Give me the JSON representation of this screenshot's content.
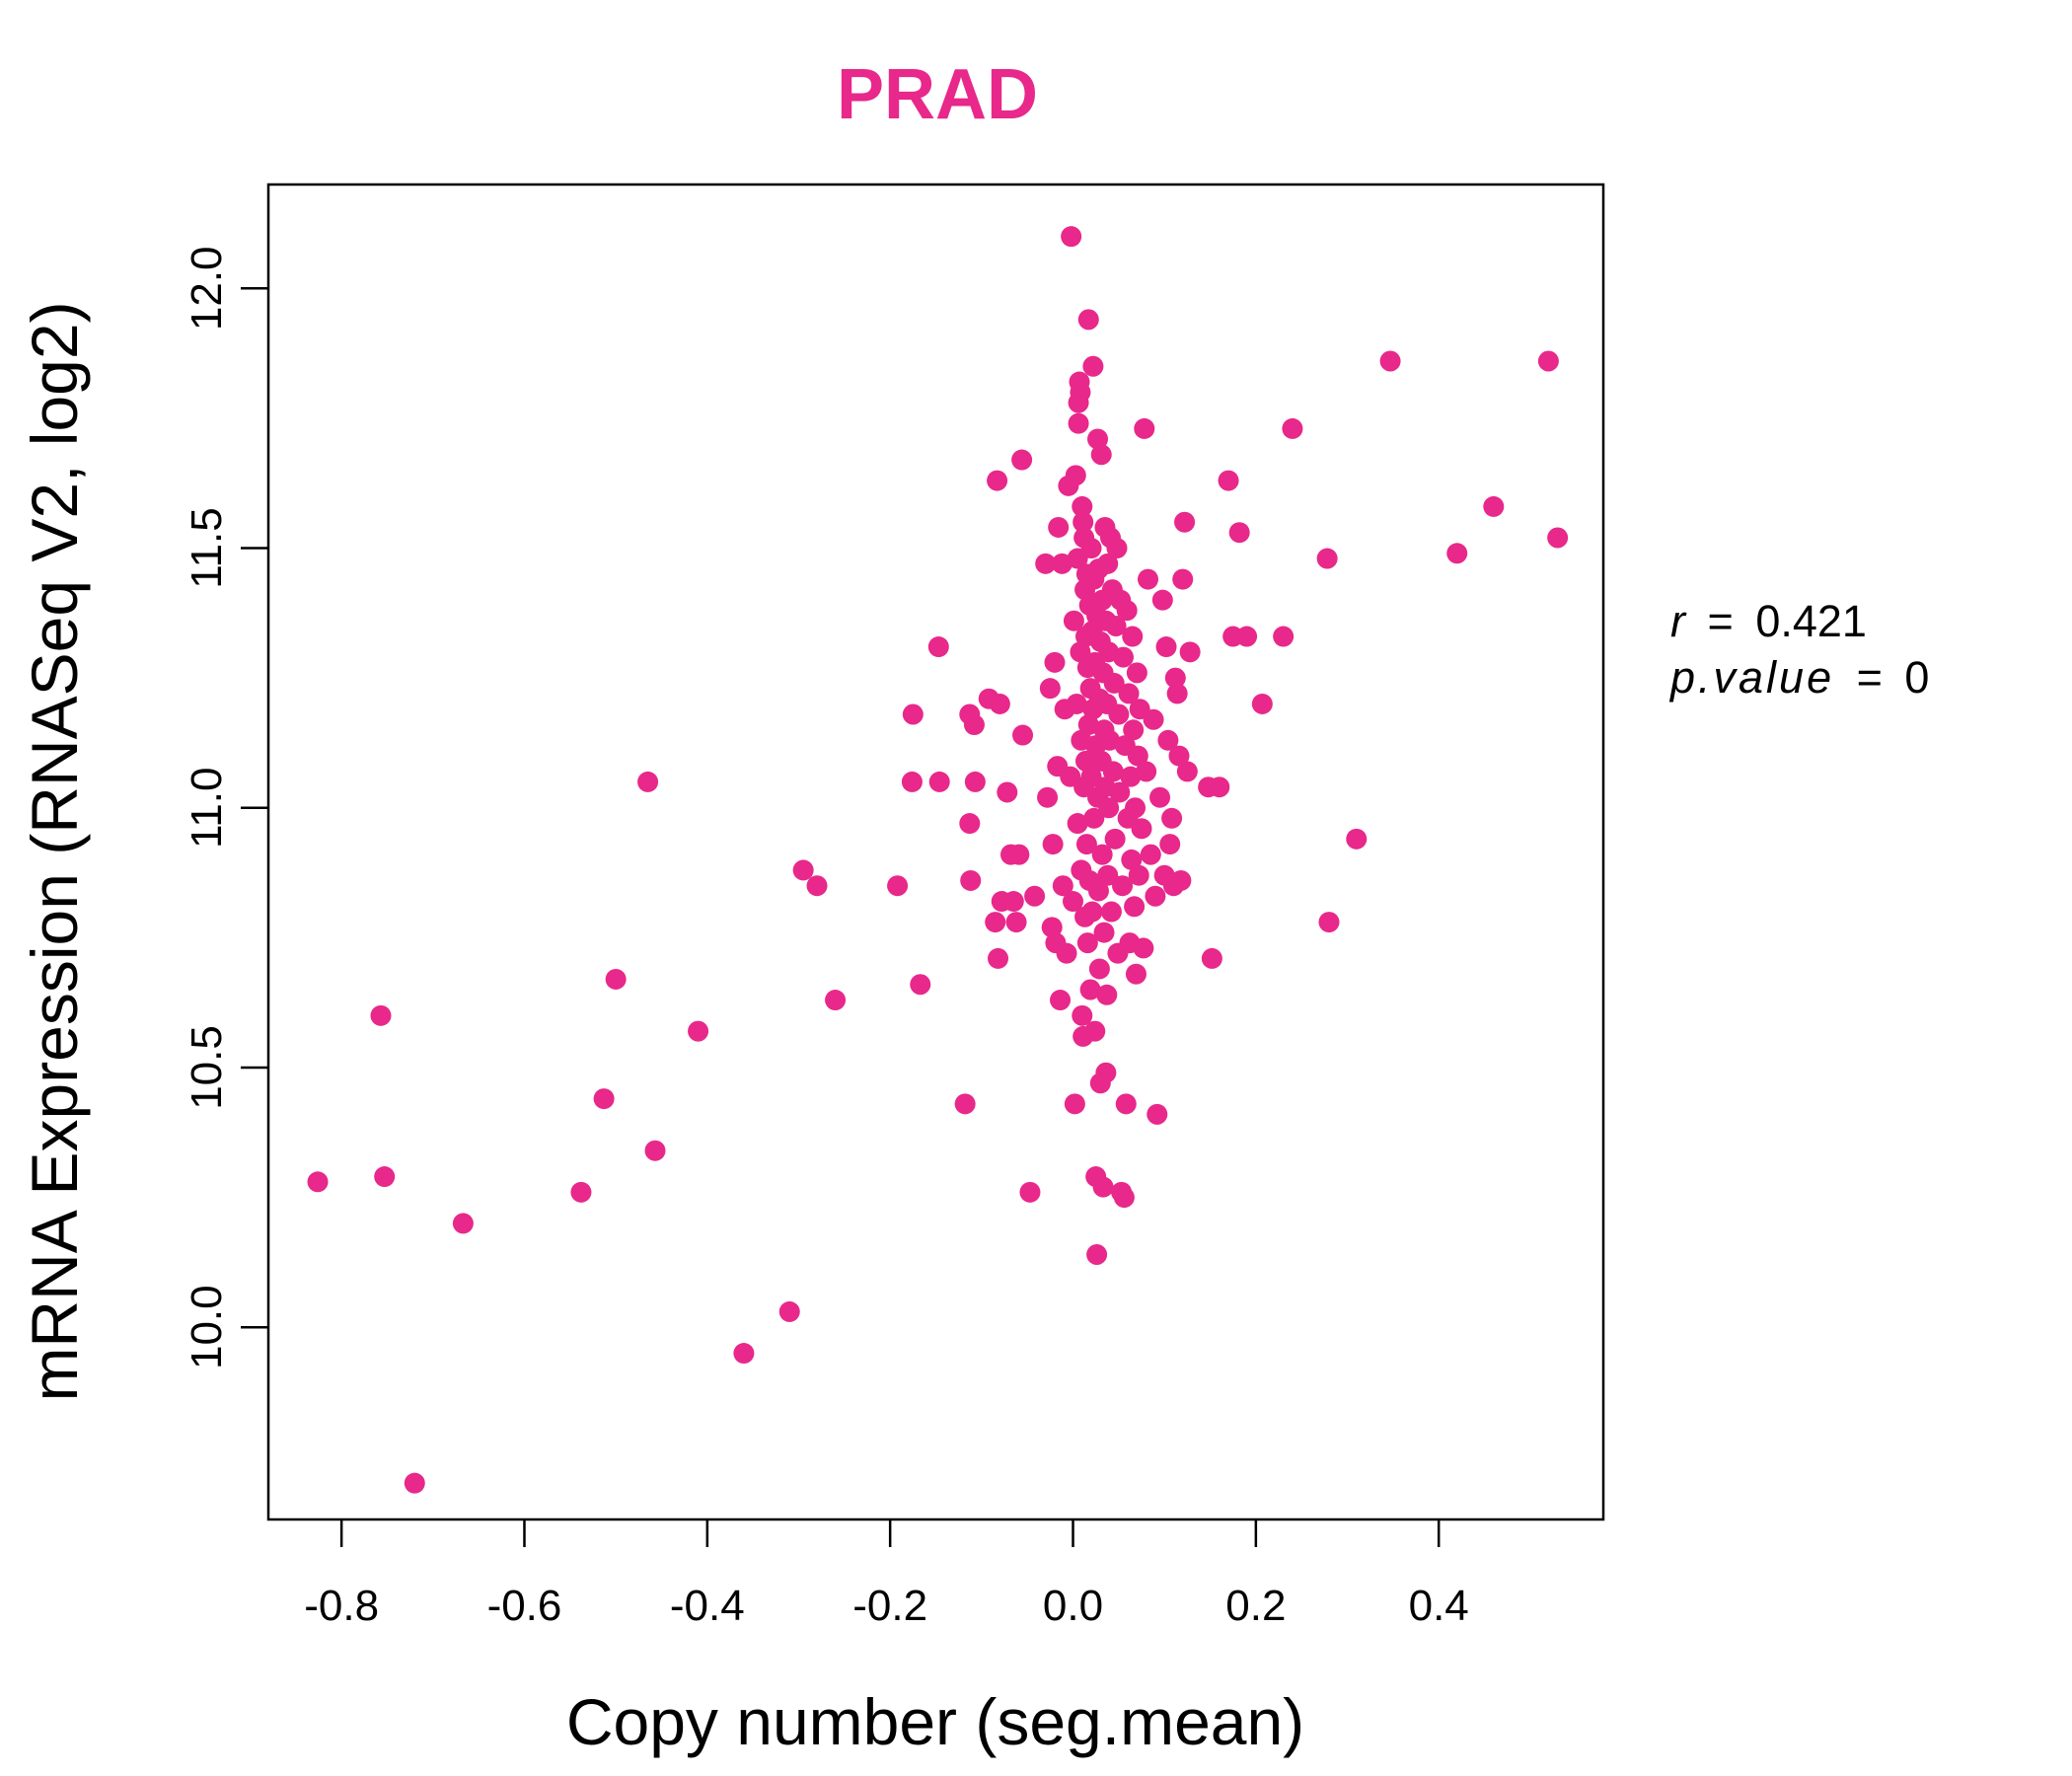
{
  "chart_data": {
    "type": "scatter",
    "title": "PRAD",
    "xlabel": "Copy number (seg.mean)",
    "ylabel": "mRNA Expression (RNASeq V2, log2)",
    "xlim": [
      -0.88,
      0.58
    ],
    "ylim": [
      9.63,
      12.2
    ],
    "xticks": [
      -0.8,
      -0.6,
      -0.4,
      -0.2,
      0.0,
      0.2,
      0.4
    ],
    "xtick_labels": [
      "-0.8",
      "-0.6",
      "-0.4",
      "-0.2",
      "0.0",
      "0.2",
      "0.4"
    ],
    "yticks": [
      10.0,
      10.5,
      11.0,
      11.5,
      12.0
    ],
    "ytick_labels": [
      "10.0",
      "10.5",
      "11.0",
      "11.5",
      "12.0"
    ],
    "grid": false,
    "point_color": "#E8288A",
    "title_color": "#E8288A",
    "annotations": {
      "r_label": "r",
      "r_value": "0.421",
      "p_label": "p.value",
      "p_value": "0"
    },
    "points": [
      [
        -0.826,
        10.28
      ],
      [
        -0.757,
        10.6
      ],
      [
        -0.753,
        10.29
      ],
      [
        -0.72,
        9.7
      ],
      [
        -0.667,
        10.2
      ],
      [
        -0.538,
        10.26
      ],
      [
        -0.513,
        10.44
      ],
      [
        -0.5,
        10.67
      ],
      [
        -0.465,
        11.05
      ],
      [
        -0.457,
        10.34
      ],
      [
        -0.41,
        10.57
      ],
      [
        -0.36,
        9.95
      ],
      [
        -0.31,
        10.03
      ],
      [
        -0.295,
        10.88
      ],
      [
        -0.28,
        10.85
      ],
      [
        -0.26,
        10.63
      ],
      [
        -0.192,
        10.85
      ],
      [
        -0.175,
        11.18
      ],
      [
        -0.176,
        11.05
      ],
      [
        -0.167,
        10.66
      ],
      [
        -0.147,
        11.31
      ],
      [
        -0.146,
        11.05
      ],
      [
        -0.118,
        10.43
      ],
      [
        -0.113,
        11.18
      ],
      [
        -0.113,
        10.97
      ],
      [
        -0.112,
        10.86
      ],
      [
        -0.108,
        11.16
      ],
      [
        -0.107,
        11.05
      ],
      [
        -0.092,
        11.21
      ],
      [
        -0.085,
        10.78
      ],
      [
        -0.083,
        11.63
      ],
      [
        -0.082,
        10.71
      ],
      [
        -0.08,
        11.2
      ],
      [
        -0.078,
        10.82
      ],
      [
        -0.072,
        11.03
      ],
      [
        -0.068,
        10.91
      ],
      [
        -0.065,
        10.82
      ],
      [
        -0.062,
        10.78
      ],
      [
        -0.059,
        10.91
      ],
      [
        -0.056,
        11.67
      ],
      [
        -0.055,
        11.14
      ],
      [
        -0.047,
        10.26
      ],
      [
        -0.042,
        10.83
      ],
      [
        -0.03,
        11.47
      ],
      [
        -0.028,
        11.02
      ],
      [
        -0.025,
        11.23
      ],
      [
        -0.023,
        10.77
      ],
      [
        -0.022,
        10.93
      ],
      [
        -0.02,
        11.28
      ],
      [
        -0.019,
        10.74
      ],
      [
        -0.017,
        11.08
      ],
      [
        -0.016,
        11.54
      ],
      [
        -0.014,
        10.63
      ],
      [
        -0.012,
        11.47
      ],
      [
        -0.011,
        10.85
      ],
      [
        -0.009,
        11.19
      ],
      [
        -0.007,
        10.72
      ],
      [
        -0.005,
        11.62
      ],
      [
        -0.003,
        11.06
      ],
      [
        -0.002,
        12.1
      ],
      [
        0.0,
        10.82
      ],
      [
        0.001,
        11.36
      ],
      [
        0.002,
        10.43
      ],
      [
        0.003,
        11.64
      ],
      [
        0.004,
        11.2
      ],
      [
        0.005,
        11.48
      ],
      [
        0.005,
        10.97
      ],
      [
        0.006,
        11.78
      ],
      [
        0.006,
        11.74
      ],
      [
        0.007,
        11.82
      ],
      [
        0.008,
        11.8
      ],
      [
        0.008,
        11.3
      ],
      [
        0.009,
        11.13
      ],
      [
        0.009,
        10.88
      ],
      [
        0.01,
        11.58
      ],
      [
        0.01,
        10.6
      ],
      [
        0.011,
        11.55
      ],
      [
        0.011,
        10.56
      ],
      [
        0.012,
        11.52
      ],
      [
        0.012,
        11.04
      ],
      [
        0.013,
        11.42
      ],
      [
        0.013,
        10.79
      ],
      [
        0.014,
        11.33
      ],
      [
        0.014,
        11.09
      ],
      [
        0.015,
        11.45
      ],
      [
        0.015,
        10.93
      ],
      [
        0.016,
        11.27
      ],
      [
        0.016,
        10.74
      ],
      [
        0.017,
        11.94
      ],
      [
        0.017,
        11.16
      ],
      [
        0.018,
        11.39
      ],
      [
        0.018,
        10.86
      ],
      [
        0.019,
        11.23
      ],
      [
        0.019,
        10.65
      ],
      [
        0.02,
        11.5
      ],
      [
        0.02,
        11.06
      ],
      [
        0.021,
        11.34
      ],
      [
        0.021,
        10.8
      ],
      [
        0.022,
        11.85
      ],
      [
        0.022,
        11.19
      ],
      [
        0.023,
        11.44
      ],
      [
        0.023,
        10.98
      ],
      [
        0.024,
        11.28
      ],
      [
        0.024,
        10.57
      ],
      [
        0.025,
        11.12
      ],
      [
        0.025,
        10.29
      ],
      [
        0.026,
        11.37
      ],
      [
        0.026,
        10.14
      ],
      [
        0.027,
        11.71
      ],
      [
        0.027,
        11.02
      ],
      [
        0.028,
        11.46
      ],
      [
        0.028,
        10.84
      ],
      [
        0.029,
        11.21
      ],
      [
        0.029,
        10.69
      ],
      [
        0.03,
        11.32
      ],
      [
        0.03,
        10.47
      ],
      [
        0.031,
        11.68
      ],
      [
        0.031,
        11.09
      ],
      [
        0.032,
        11.4
      ],
      [
        0.032,
        10.91
      ],
      [
        0.033,
        11.26
      ],
      [
        0.033,
        10.27
      ],
      [
        0.034,
        11.15
      ],
      [
        0.034,
        10.76
      ],
      [
        0.035,
        11.54
      ],
      [
        0.035,
        11.04
      ],
      [
        0.036,
        11.36
      ],
      [
        0.036,
        10.49
      ],
      [
        0.037,
        11.2
      ],
      [
        0.037,
        10.64
      ],
      [
        0.038,
        11.47
      ],
      [
        0.038,
        10.87
      ],
      [
        0.039,
        11.3
      ],
      [
        0.039,
        11.0
      ],
      [
        0.04,
        11.13
      ],
      [
        0.041,
        11.52
      ],
      [
        0.042,
        10.8
      ],
      [
        0.043,
        11.42
      ],
      [
        0.044,
        11.07
      ],
      [
        0.045,
        11.24
      ],
      [
        0.046,
        10.94
      ],
      [
        0.047,
        11.35
      ],
      [
        0.048,
        11.5
      ],
      [
        0.049,
        10.72
      ],
      [
        0.05,
        11.18
      ],
      [
        0.051,
        11.03
      ],
      [
        0.052,
        11.4
      ],
      [
        0.053,
        10.26
      ],
      [
        0.054,
        10.85
      ],
      [
        0.055,
        11.29
      ],
      [
        0.056,
        10.25
      ],
      [
        0.057,
        11.12
      ],
      [
        0.058,
        10.43
      ],
      [
        0.059,
        11.38
      ],
      [
        0.06,
        10.98
      ],
      [
        0.061,
        11.22
      ],
      [
        0.062,
        10.74
      ],
      [
        0.063,
        11.06
      ],
      [
        0.064,
        10.9
      ],
      [
        0.065,
        11.33
      ],
      [
        0.066,
        11.15
      ],
      [
        0.067,
        10.81
      ],
      [
        0.068,
        11.0
      ],
      [
        0.069,
        10.68
      ],
      [
        0.07,
        11.26
      ],
      [
        0.071,
        11.1
      ],
      [
        0.072,
        10.87
      ],
      [
        0.073,
        11.19
      ],
      [
        0.075,
        10.96
      ],
      [
        0.077,
        10.73
      ],
      [
        0.078,
        11.73
      ],
      [
        0.08,
        11.07
      ],
      [
        0.082,
        11.44
      ],
      [
        0.085,
        10.91
      ],
      [
        0.088,
        11.17
      ],
      [
        0.09,
        10.83
      ],
      [
        0.092,
        10.41
      ],
      [
        0.095,
        11.02
      ],
      [
        0.098,
        11.4
      ],
      [
        0.1,
        10.87
      ],
      [
        0.102,
        11.31
      ],
      [
        0.104,
        11.13
      ],
      [
        0.106,
        10.93
      ],
      [
        0.108,
        10.98
      ],
      [
        0.11,
        10.85
      ],
      [
        0.112,
        11.25
      ],
      [
        0.114,
        11.22
      ],
      [
        0.116,
        11.1
      ],
      [
        0.118,
        10.86
      ],
      [
        0.12,
        11.44
      ],
      [
        0.122,
        11.55
      ],
      [
        0.125,
        11.07
      ],
      [
        0.128,
        11.3
      ],
      [
        0.148,
        11.04
      ],
      [
        0.152,
        10.71
      ],
      [
        0.16,
        11.04
      ],
      [
        0.17,
        11.63
      ],
      [
        0.175,
        11.33
      ],
      [
        0.182,
        11.53
      ],
      [
        0.19,
        11.33
      ],
      [
        0.207,
        11.2
      ],
      [
        0.23,
        11.33
      ],
      [
        0.24,
        11.73
      ],
      [
        0.278,
        11.48
      ],
      [
        0.28,
        10.78
      ],
      [
        0.31,
        10.94
      ],
      [
        0.347,
        11.86
      ],
      [
        0.42,
        11.49
      ],
      [
        0.46,
        11.58
      ],
      [
        0.52,
        11.86
      ],
      [
        0.53,
        11.52
      ]
    ]
  }
}
